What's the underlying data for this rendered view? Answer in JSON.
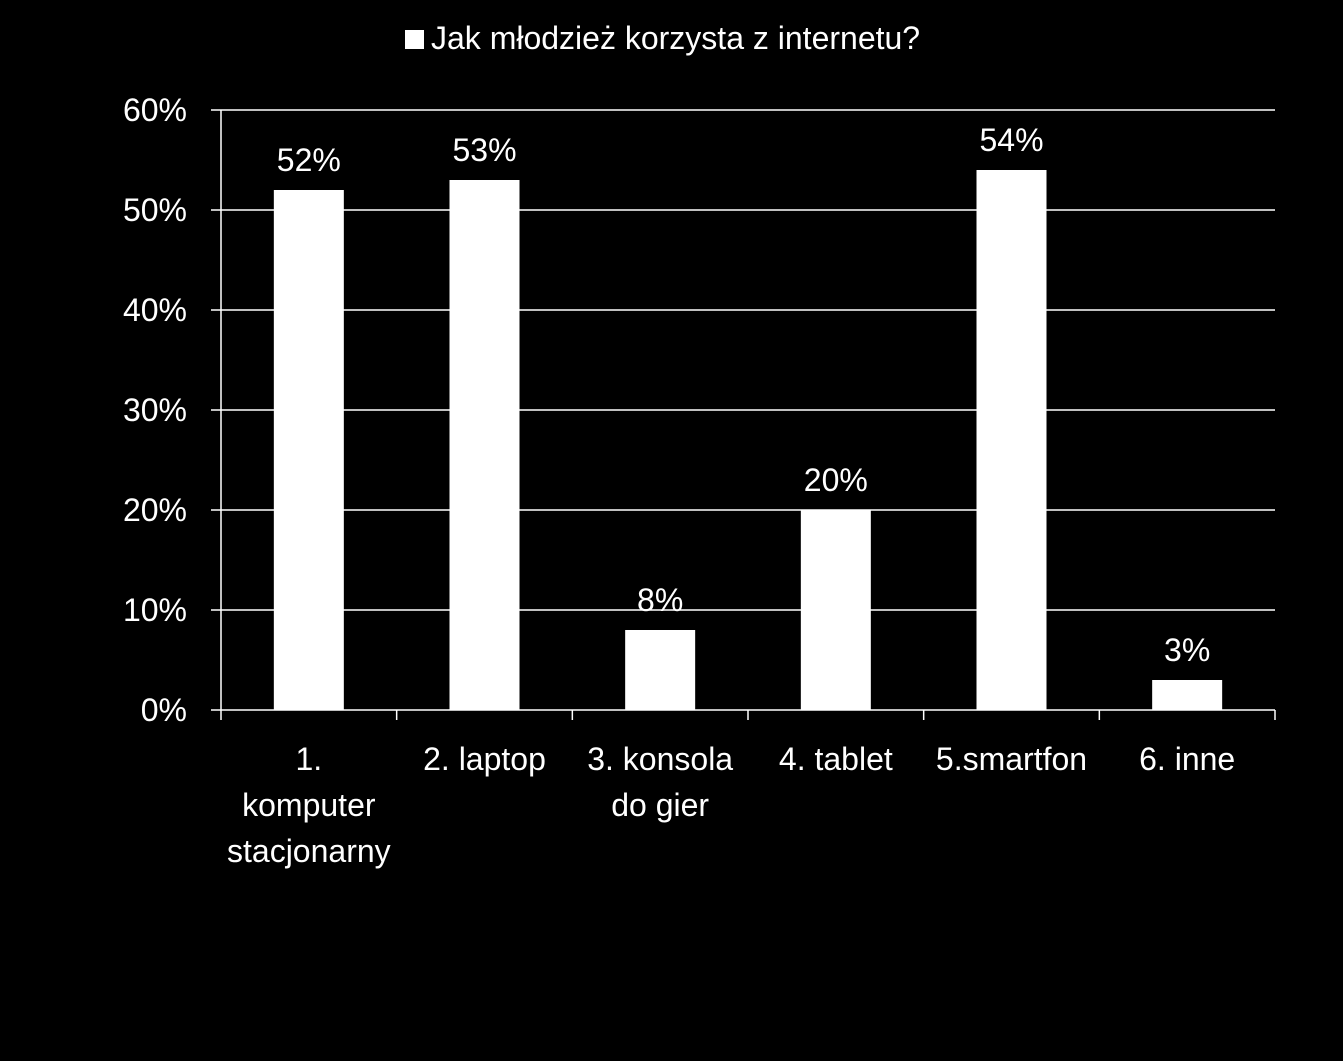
{
  "chart_data": {
    "type": "bar",
    "categories": [
      [
        "1.",
        "komputer",
        "stacjonarny"
      ],
      [
        "2. laptop"
      ],
      [
        "3. konsola",
        "do gier"
      ],
      [
        "4. tablet"
      ],
      [
        "5.smartfon"
      ],
      [
        "6. inne"
      ]
    ],
    "series": [
      {
        "name": "Jak młodzież korzysta z internetu?",
        "values": [
          52,
          53,
          8,
          20,
          54,
          3
        ],
        "labels": [
          "52%",
          "53%",
          "8%",
          "20%",
          "54%",
          "3%"
        ]
      }
    ],
    "ylim": [
      0,
      60
    ],
    "yticks": [
      0,
      10,
      20,
      30,
      40,
      50,
      60
    ],
    "ytick_labels": [
      "0%",
      "10%",
      "20%",
      "30%",
      "40%",
      "50%",
      "60%"
    ],
    "grid": true,
    "legend_position": "top",
    "colors": {
      "background": "#000000",
      "bar": "#ffffff",
      "text": "#ffffff",
      "grid": "#ffffff"
    }
  }
}
